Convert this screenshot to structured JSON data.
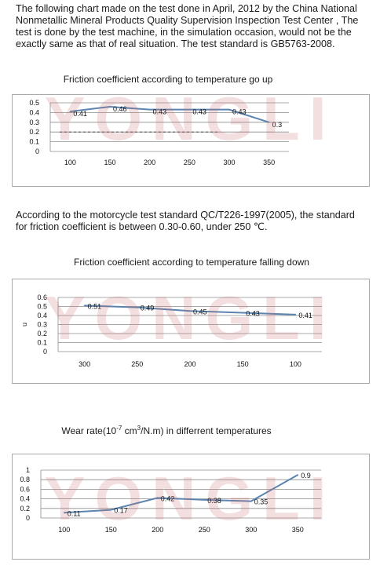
{
  "intro_text": "The following chart made on the test done in April, 2012 by the China National Nonmetallic Mineral Products Quality Supervision Inspection Test Center , The test is done by the test machine, in the simulation occasion, would not be the exactly same as that of real situation. The test standard is GB5763-2008.",
  "standard_text": "According to the motorcycle test standard QC/T226-1997(2005), the standard for friction coefficient is between 0.30-0.60, under 250  ℃.",
  "watermark": "YONGLI",
  "colors": {
    "line": "#5b84b0",
    "grid": "#8c8c8c",
    "frame": "#a9a9a9",
    "watermark": "#c86e6e",
    "dashed": "#333333"
  },
  "chart_data": [
    {
      "type": "line",
      "title": "Friction coefficient according to temperature go up",
      "categories": [
        "100",
        "150",
        "200",
        "250",
        "300",
        "350"
      ],
      "values": [
        0.41,
        0.46,
        0.43,
        0.43,
        0.43,
        0.3
      ],
      "data_labels": [
        "0.41",
        "0.46",
        "0.43",
        "0.43",
        "0.43",
        "0.3"
      ],
      "ylim": [
        0,
        0.5
      ],
      "yticks": [
        "0",
        "0.1",
        "0.2",
        "0.3",
        "0.4",
        "0.5"
      ],
      "ylabel": "",
      "reference_line": {
        "style": "dashed",
        "value": 0.2
      },
      "grid": true
    },
    {
      "type": "line",
      "title": "Friction coefficient according to temperature falling down",
      "categories": [
        "300",
        "250",
        "200",
        "150",
        "100"
      ],
      "values": [
        0.51,
        0.49,
        0.45,
        0.43,
        0.41
      ],
      "data_labels": [
        "0.51",
        "0.49",
        "0.45",
        "0.43",
        "0.41"
      ],
      "ylim": [
        0,
        0.6
      ],
      "yticks": [
        "0",
        "0.1",
        "0.2",
        "0.3",
        "0.4",
        "0.5",
        "0.6"
      ],
      "ylabel": "u",
      "grid": true
    },
    {
      "type": "line",
      "title_prefix": "Wear rate(10",
      "title_sup1": "-7",
      "title_mid": " cm",
      "title_sup2": "3",
      "title_suffix": "/N.m) in differrent temperatures",
      "categories": [
        "100",
        "150",
        "200",
        "250",
        "300",
        "350"
      ],
      "values": [
        0.11,
        0.17,
        0.42,
        0.38,
        0.35,
        0.9
      ],
      "data_labels": [
        "0.11",
        "0.17",
        "0.42",
        "0.38",
        "0.35",
        "0.9"
      ],
      "ylim": [
        0,
        1
      ],
      "yticks": [
        "0",
        "0.2",
        "0.4",
        "0.6",
        "0.8",
        "1"
      ],
      "ylabel": "",
      "grid": true
    }
  ]
}
